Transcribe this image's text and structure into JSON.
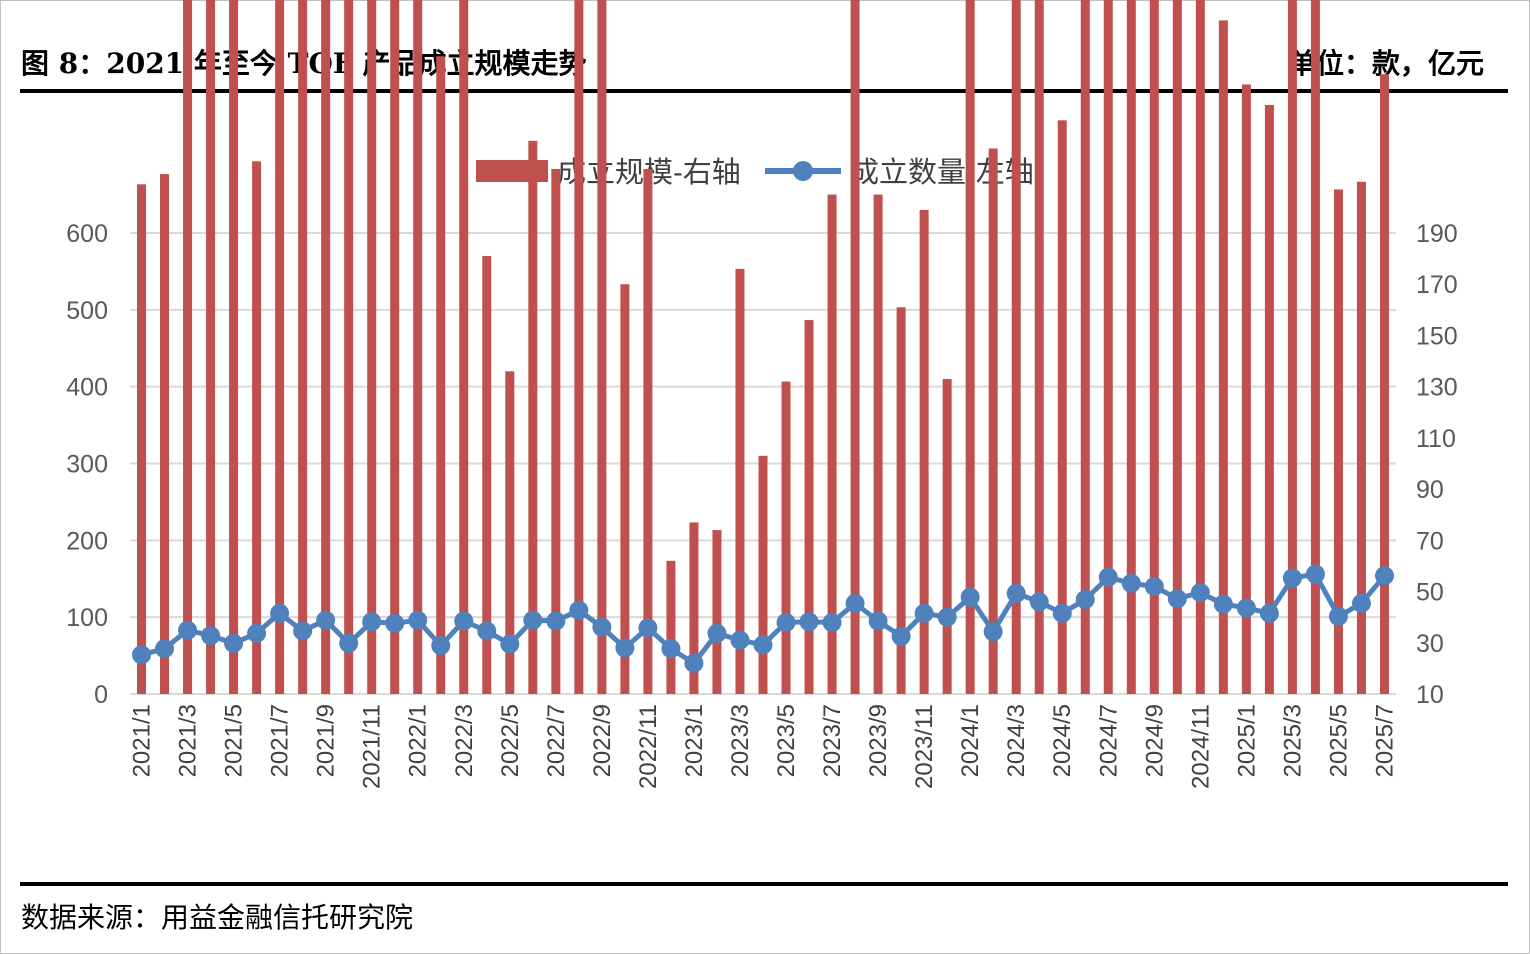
{
  "header": {
    "title": "图 8：2021 年至今 TOF 产品成立规模走势",
    "unit": "单位：款，亿元"
  },
  "footer": {
    "source": "数据来源：用益金融信托研究院"
  },
  "colors": {
    "bar": "#c0504d",
    "line": "#4f81bd",
    "grid": "#d9d9d9",
    "axis": "#d9d9d9"
  },
  "chart_data": {
    "type": "bar+line",
    "title": "",
    "legend": {
      "position": "top",
      "entries": [
        "成立规模-右轴",
        "成立数量-左轴"
      ]
    },
    "categories": [
      "2021/1",
      "2021/2",
      "2021/3",
      "2021/4",
      "2021/5",
      "2021/6",
      "2021/7",
      "2021/8",
      "2021/9",
      "2021/10",
      "2021/11",
      "2021/12",
      "2022/1",
      "2022/2",
      "2022/3",
      "2022/4",
      "2022/5",
      "2022/6",
      "2022/7",
      "2022/8",
      "2022/9",
      "2022/10",
      "2022/11",
      "2022/12",
      "2023/1",
      "2023/2",
      "2023/3",
      "2023/4",
      "2023/5",
      "2023/6",
      "2023/7",
      "2023/8",
      "2023/9",
      "2023/10",
      "2023/11",
      "2023/12",
      "2024/1",
      "2024/2",
      "2024/3",
      "2024/4",
      "2024/5",
      "2024/6",
      "2024/7",
      "2024/8",
      "2024/9",
      "2024/10",
      "2024/11",
      "2024/12",
      "2025/1",
      "2025/2",
      "2025/3",
      "2025/4",
      "2025/5",
      "2025/6",
      "2025/7"
    ],
    "x_tick_labels": [
      "2021/1",
      "2021/3",
      "2021/5",
      "2021/7",
      "2021/9",
      "2021/11",
      "2022/1",
      "2022/3",
      "2022/5",
      "2022/7",
      "2022/9",
      "2022/11",
      "2023/1",
      "2023/3",
      "2023/5",
      "2023/7",
      "2023/9",
      "2023/11",
      "2024/1",
      "2024/3",
      "2024/5",
      "2024/7",
      "2024/9",
      "2024/11",
      "2025/1",
      "2025/3",
      "2025/5",
      "2025/7"
    ],
    "left_axis": {
      "ticks": [
        "600",
        "500",
        "400",
        "300",
        "200",
        "100",
        "0"
      ],
      "range": [
        0,
        600
      ]
    },
    "right_axis": {
      "ticks": [
        "190",
        "170",
        "150",
        "130",
        "110",
        "90",
        "70",
        "50",
        "30",
        "10"
      ],
      "range": [
        10,
        190
      ]
    },
    "grid": true,
    "series": [
      {
        "name": "成立规模-右轴",
        "kind": "bar",
        "values": [
          209,
          213,
          528,
          507,
          458,
          218,
          511,
          405,
          357,
          290,
          332,
          330,
          481,
          259,
          369,
          181,
          136,
          226,
          215,
          306,
          284,
          170,
          215,
          62,
          77,
          74,
          176,
          103,
          132,
          156,
          205,
          286,
          205,
          161,
          199,
          133,
          309,
          223,
          424,
          386,
          234,
          323,
          473,
          453,
          411,
          333,
          369,
          273,
          248,
          240,
          291,
          355,
          207,
          210,
          252
        ]
      },
      {
        "name": "成立数量-左轴",
        "kind": "line",
        "values": [
          51,
          59,
          83,
          76,
          66,
          79,
          105,
          82,
          96,
          66,
          94,
          92,
          96,
          63,
          95,
          82,
          65,
          96,
          95,
          109,
          87,
          60,
          86,
          59,
          40,
          79,
          70,
          64,
          93,
          94,
          93,
          118,
          95,
          75,
          105,
          100,
          126,
          81,
          131,
          120,
          105,
          123,
          152,
          144,
          140,
          124,
          132,
          117,
          112,
          105,
          151,
          156,
          101,
          118,
          154
        ]
      }
    ]
  }
}
